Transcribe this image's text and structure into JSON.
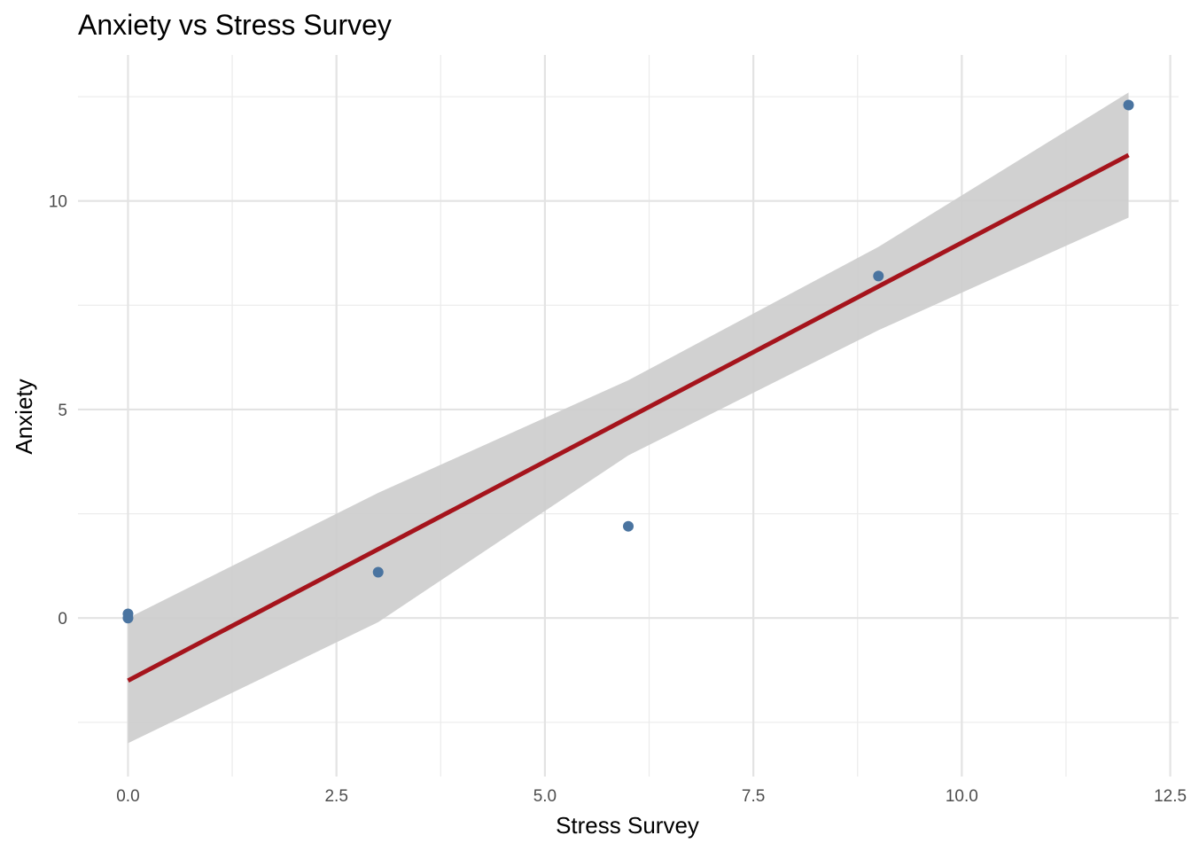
{
  "chart_data": {
    "type": "scatter",
    "title": "Anxiety vs Stress Survey",
    "xlabel": "Stress Survey",
    "ylabel": "Anxiety",
    "xlim": [
      -0.6,
      12.6
    ],
    "ylim": [
      -3.8,
      13.5
    ],
    "x_ticks": [
      0.0,
      2.5,
      5.0,
      7.5,
      10.0,
      12.5
    ],
    "x_tick_labels": [
      "0.0",
      "2.5",
      "5.0",
      "7.5",
      "10.0",
      "12.5"
    ],
    "y_ticks": [
      0,
      5,
      10
    ],
    "y_tick_labels": [
      "0",
      "5",
      "10"
    ],
    "x_minor_ticks": [
      1.25,
      3.75,
      6.25,
      8.75,
      11.25
    ],
    "y_minor_ticks": [
      -2.5,
      2.5,
      7.5,
      12.5
    ],
    "grid": true,
    "series": [
      {
        "type": "scatter",
        "color": "#4a74a0",
        "points": [
          {
            "x": 0,
            "y": 0.1
          },
          {
            "x": 0,
            "y": 0.0
          },
          {
            "x": 3,
            "y": 1.1
          },
          {
            "x": 6,
            "y": 2.2
          },
          {
            "x": 9,
            "y": 8.2
          },
          {
            "x": 12,
            "y": 12.3
          }
        ]
      },
      {
        "type": "line",
        "color": "#a5141c",
        "x": [
          0,
          12
        ],
        "y": [
          -1.5,
          11.1
        ]
      },
      {
        "type": "area",
        "color": "#cccccc",
        "x": [
          0,
          3,
          6,
          9,
          12
        ],
        "lower": [
          -3.0,
          -0.1,
          3.9,
          6.9,
          9.6
        ],
        "upper": [
          0.0,
          3.0,
          5.7,
          8.9,
          12.6
        ]
      }
    ]
  }
}
